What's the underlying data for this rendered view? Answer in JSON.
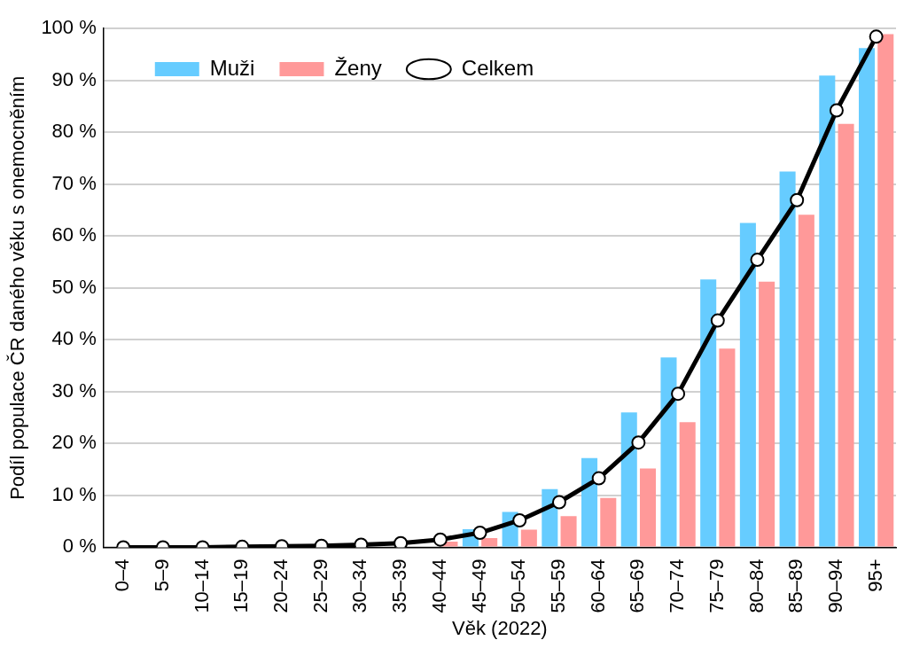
{
  "chart_data": {
    "type": "bar",
    "xlabel": "Věk (2022)",
    "ylabel": "Podíl populace ČR daného věku s onemocněním",
    "categories": [
      "0–4",
      "5–9",
      "10–14",
      "15–19",
      "20–24",
      "25–29",
      "30–34",
      "35–39",
      "40–44",
      "45–49",
      "50–54",
      "55–59",
      "60–64",
      "65–69",
      "70–74",
      "75–79",
      "80–84",
      "85–89",
      "90–94",
      "95+"
    ],
    "series": [
      {
        "name": "Muži",
        "color": "#66ccff",
        "values": [
          null,
          null,
          null,
          null,
          null,
          null,
          null,
          null,
          null,
          3.5,
          6.8,
          11.2,
          17.2,
          26.0,
          36.6,
          51.6,
          62.5,
          72.4,
          90.9,
          96.2
        ]
      },
      {
        "name": "Ženy",
        "color": "#ff9999",
        "values": [
          null,
          null,
          null,
          null,
          null,
          null,
          null,
          null,
          1.1,
          1.8,
          3.4,
          6.0,
          9.5,
          15.2,
          24.1,
          38.3,
          51.2,
          64.1,
          81.6,
          98.9
        ]
      },
      {
        "name": "Celkem",
        "type": "line",
        "color": "#000000",
        "values": [
          0.0,
          0.0,
          0.0,
          0.1,
          0.2,
          0.3,
          0.5,
          0.8,
          1.5,
          2.8,
          5.2,
          8.7,
          13.3,
          20.2,
          29.6,
          43.7,
          55.4,
          66.9,
          84.2,
          98.4
        ]
      }
    ],
    "ylim": [
      0,
      100
    ],
    "yticks": [
      {
        "value": 0,
        "label": "0 %"
      },
      {
        "value": 10,
        "label": "10 %"
      },
      {
        "value": 20,
        "label": "20 %"
      },
      {
        "value": 30,
        "label": "30 %"
      },
      {
        "value": 40,
        "label": "40 %"
      },
      {
        "value": 50,
        "label": "50 %"
      },
      {
        "value": 60,
        "label": "60 %"
      },
      {
        "value": 70,
        "label": "70 %"
      },
      {
        "value": 80,
        "label": "80 %"
      },
      {
        "value": 90,
        "label": "90 %"
      },
      {
        "value": 100,
        "label": "100 %"
      }
    ],
    "grid": "y",
    "legend": "top left",
    "marker": "circle",
    "line_style": "solid"
  }
}
